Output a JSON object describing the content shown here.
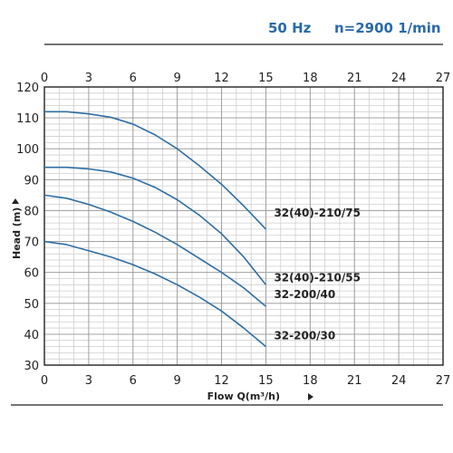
{
  "header": {
    "frequency": "50 Hz",
    "speed": "n=2900 1/min"
  },
  "colors": {
    "curve": "#2f6ea5",
    "grid": "#cfcfcf",
    "axis": "#222222",
    "text": "#222222",
    "header": "#2a6aa9"
  },
  "chart_data": {
    "type": "line",
    "xlabel": "Flow Q(m³/h)",
    "ylabel": "Head (m)",
    "xlim": [
      0,
      27
    ],
    "ylim": [
      30,
      120
    ],
    "x_ticks": [
      0,
      3,
      6,
      9,
      12,
      15,
      18,
      21,
      24,
      27
    ],
    "y_ticks": [
      30,
      40,
      50,
      60,
      70,
      80,
      90,
      100,
      110,
      120
    ],
    "x_ticks_top": true,
    "grid": true,
    "series": [
      {
        "name": "32(40)-210/75",
        "x": [
          0,
          1.5,
          3,
          4.5,
          6,
          7.5,
          9,
          10.5,
          12,
          13.5,
          15
        ],
        "y": [
          112,
          112,
          111.3,
          110.2,
          108,
          104.5,
          100,
          94.5,
          88.5,
          81.5,
          74
        ]
      },
      {
        "name": "32(40)-210/55",
        "x": [
          0,
          1.5,
          3,
          4.5,
          6,
          7.5,
          9,
          10.5,
          12,
          13.5,
          15
        ],
        "y": [
          94,
          94,
          93.5,
          92.5,
          90.5,
          87.5,
          83.5,
          78.5,
          72.5,
          65,
          56
        ]
      },
      {
        "name": "32-200/40",
        "x": [
          0,
          1.5,
          3,
          4.5,
          6,
          7.5,
          9,
          10.5,
          12,
          13.5,
          15
        ],
        "y": [
          85,
          84,
          82,
          79.5,
          76.5,
          73,
          69,
          64.5,
          60,
          55,
          49
        ]
      },
      {
        "name": "32-200/30",
        "x": [
          0,
          1.5,
          3,
          4.5,
          6,
          7.5,
          9,
          10.5,
          12,
          13.5,
          15
        ],
        "y": [
          70,
          69,
          67,
          65,
          62.5,
          59.5,
          56,
          52,
          47.5,
          42,
          36
        ]
      }
    ]
  }
}
